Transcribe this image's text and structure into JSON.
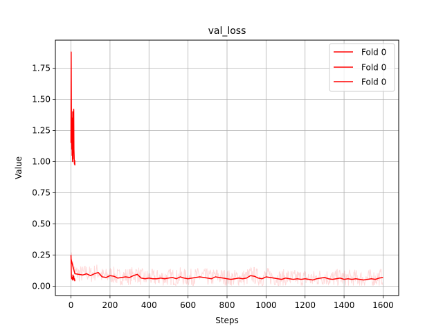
{
  "chart_data": {
    "type": "line",
    "title": "val_loss",
    "xlabel": "Steps",
    "ylabel": "Value",
    "xlim": [
      -80,
      1680
    ],
    "ylim": [
      -0.075,
      1.975
    ],
    "x_ticks": [
      0,
      200,
      400,
      600,
      800,
      1000,
      1200,
      1400,
      1600
    ],
    "x_tick_labels": [
      "0",
      "200",
      "400",
      "600",
      "800",
      "1000",
      "1200",
      "1400",
      "1600"
    ],
    "y_ticks": [
      0.0,
      0.25,
      0.5,
      0.75,
      1.0,
      1.25,
      1.5,
      1.75
    ],
    "y_tick_labels": [
      "0.00",
      "0.25",
      "0.50",
      "0.75",
      "1.00",
      "1.25",
      "1.50",
      "1.75"
    ],
    "grid": true,
    "legend_placement": "top-right",
    "series": [
      {
        "name": "Fold 0",
        "color": "#ff0000",
        "x": [
          0,
          1,
          2,
          3,
          4,
          5,
          6,
          7,
          8,
          9,
          10,
          11,
          12,
          13,
          14,
          15,
          16,
          17,
          18,
          19,
          20
        ],
        "y": [
          1.15,
          1.88,
          1.45,
          1.2,
          1.1,
          1.35,
          1.05,
          1.25,
          1.0,
          1.4,
          1.02,
          1.15,
          1.3,
          1.38,
          1.42,
          1.1,
          1.05,
          1.0,
          0.98,
          1.01,
          0.97
        ]
      },
      {
        "name": "Fold 0",
        "color": "#ff0000",
        "x": [
          0,
          2,
          4,
          6,
          8,
          10,
          12,
          14,
          16,
          18,
          20
        ],
        "y": [
          0.25,
          0.08,
          0.06,
          0.07,
          0.05,
          0.09,
          0.06,
          0.08,
          0.05,
          0.06,
          0.04
        ]
      },
      {
        "name": "Fold 0",
        "color": "#ff0000",
        "x": [
          0,
          20,
          40,
          60,
          80,
          100,
          120,
          140,
          160,
          180,
          200,
          220,
          240,
          260,
          280,
          300,
          320,
          340,
          360,
          380,
          400,
          420,
          440,
          460,
          480,
          500,
          520,
          540,
          560,
          580,
          600,
          620,
          640,
          660,
          680,
          700,
          720,
          740,
          760,
          780,
          800,
          820,
          840,
          860,
          880,
          900,
          920,
          940,
          960,
          980,
          1000,
          1020,
          1040,
          1060,
          1080,
          1100,
          1120,
          1140,
          1160,
          1180,
          1200,
          1220,
          1240,
          1260,
          1280,
          1300,
          1320,
          1340,
          1360,
          1380,
          1400,
          1420,
          1440,
          1460,
          1480,
          1500,
          1520,
          1540,
          1560,
          1580,
          1600
        ],
        "y": [
          0.22,
          0.1,
          0.095,
          0.09,
          0.1,
          0.085,
          0.1,
          0.11,
          0.075,
          0.07,
          0.085,
          0.08,
          0.065,
          0.07,
          0.075,
          0.07,
          0.085,
          0.095,
          0.065,
          0.06,
          0.065,
          0.06,
          0.06,
          0.065,
          0.06,
          0.065,
          0.07,
          0.06,
          0.075,
          0.065,
          0.06,
          0.065,
          0.07,
          0.075,
          0.07,
          0.065,
          0.06,
          0.075,
          0.07,
          0.065,
          0.06,
          0.055,
          0.06,
          0.065,
          0.06,
          0.065,
          0.085,
          0.08,
          0.065,
          0.06,
          0.075,
          0.07,
          0.065,
          0.06,
          0.055,
          0.065,
          0.06,
          0.055,
          0.06,
          0.055,
          0.06,
          0.055,
          0.05,
          0.06,
          0.065,
          0.07,
          0.06,
          0.055,
          0.06,
          0.065,
          0.055,
          0.06,
          0.055,
          0.06,
          0.055,
          0.05,
          0.055,
          0.06,
          0.055,
          0.065,
          0.07
        ]
      }
    ]
  }
}
